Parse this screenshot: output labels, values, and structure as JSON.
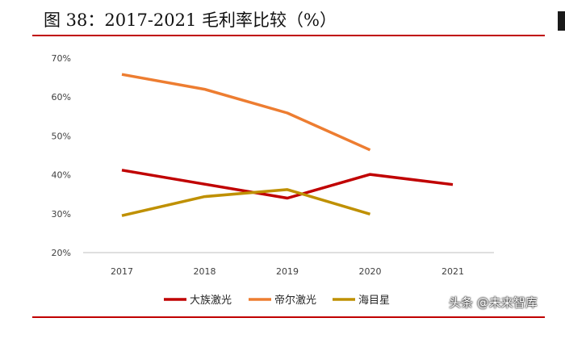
{
  "header": {
    "title": "图 38：2017-2021 毛利率比较（%）"
  },
  "watermark": "头条 @未来智库",
  "colors": {
    "accent_rule": "#c00000"
  },
  "chart_data": {
    "type": "line",
    "title": "",
    "xlabel": "",
    "ylabel": "",
    "categories": [
      "2017",
      "2018",
      "2019",
      "2020",
      "2021"
    ],
    "ylim": [
      20,
      70
    ],
    "yticks": [
      20,
      30,
      40,
      50,
      60,
      70
    ],
    "ytick_labels": [
      "20%",
      "30%",
      "40%",
      "50%",
      "60%",
      "70%"
    ],
    "grid": false,
    "legend_position": "bottom",
    "series": [
      {
        "name": "大族激光",
        "color": "#c00000",
        "values": [
          41.2,
          37.6,
          34.0,
          40.1,
          37.5
        ]
      },
      {
        "name": "帝尔激光",
        "color": "#ed7d31",
        "values": [
          65.8,
          62.0,
          55.9,
          46.4,
          null
        ]
      },
      {
        "name": "海目星",
        "color": "#bf9000",
        "values": [
          29.5,
          34.4,
          36.2,
          29.9,
          null
        ]
      }
    ]
  }
}
